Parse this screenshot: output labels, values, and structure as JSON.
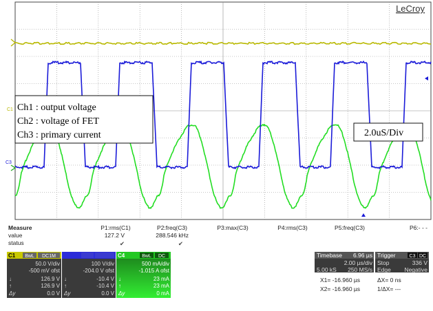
{
  "brand": "LeCroy",
  "annotations": {
    "ch1": "Ch1 : output voltage",
    "ch2": "Ch2 : voltage of FET",
    "ch3": "Ch3 : primary current",
    "timebase_note": "2.0uS/Div"
  },
  "channel_markers": {
    "c1": "C1",
    "c3": "C3"
  },
  "measure": {
    "header": "Measure",
    "row_labels": [
      "value",
      "status"
    ],
    "columns": [
      {
        "param": "P1:rms(C1)",
        "value": "127.2 V",
        "status": "✔"
      },
      {
        "param": "P2:freq(C3)",
        "value": "288.546 kHz",
        "status": "✔"
      },
      {
        "param": "P3:max(C3)",
        "value": "",
        "status": ""
      },
      {
        "param": "P4:rms(C3)",
        "value": "",
        "status": ""
      },
      {
        "param": "P5:freq(C3)",
        "value": "",
        "status": ""
      },
      {
        "param": "P6:- - -",
        "value": "",
        "status": ""
      }
    ]
  },
  "channels": [
    {
      "id": "C1",
      "tags": [
        "BwL",
        "DC1M"
      ],
      "color": "#c8c800",
      "vdiv": "50.0 V/div",
      "ofst": "-500 mV ofst",
      "down": "126.9 V",
      "up": "126.9 V",
      "dy": "0.0 V"
    },
    {
      "id": "",
      "tags": [
        "",
        ""
      ],
      "color": "#2b2bd8",
      "vdiv": "100 V/div",
      "ofst": "-204.0 V ofst",
      "down": "-10.4 V",
      "up": "-10.4 V",
      "dy": "0.0 V"
    },
    {
      "id": "C4",
      "tags": [
        "BwL",
        "DC"
      ],
      "color": "#22c822",
      "vdiv": "500 mA/div",
      "ofst": "-1.015 A ofst",
      "down": "23 mA",
      "up": "23 mA",
      "dy": "0 mA"
    }
  ],
  "timebase": {
    "label": "Timebase",
    "delay": "6.96 µs",
    "per_div": "2.00 µs/div",
    "samples": "5.00 kS",
    "rate": "250 MS/s"
  },
  "trigger": {
    "label": "Trigger",
    "source": "C3",
    "coupling": "DC",
    "mode": "Stop",
    "level": "336 V",
    "type": "Edge",
    "slope": "Negative"
  },
  "cursors": {
    "x1": "X1= -16.960 µs",
    "dx": "ΔX= 0 ns",
    "x2": "X2= -16.960 µs",
    "inv_dx": "1/ΔX= ---"
  },
  "colors": {
    "ch1_trace": "#b8b800",
    "ch2_trace": "#1a1ad8",
    "ch3_trace": "#22dd22",
    "grid": "#8a8a8a"
  }
}
